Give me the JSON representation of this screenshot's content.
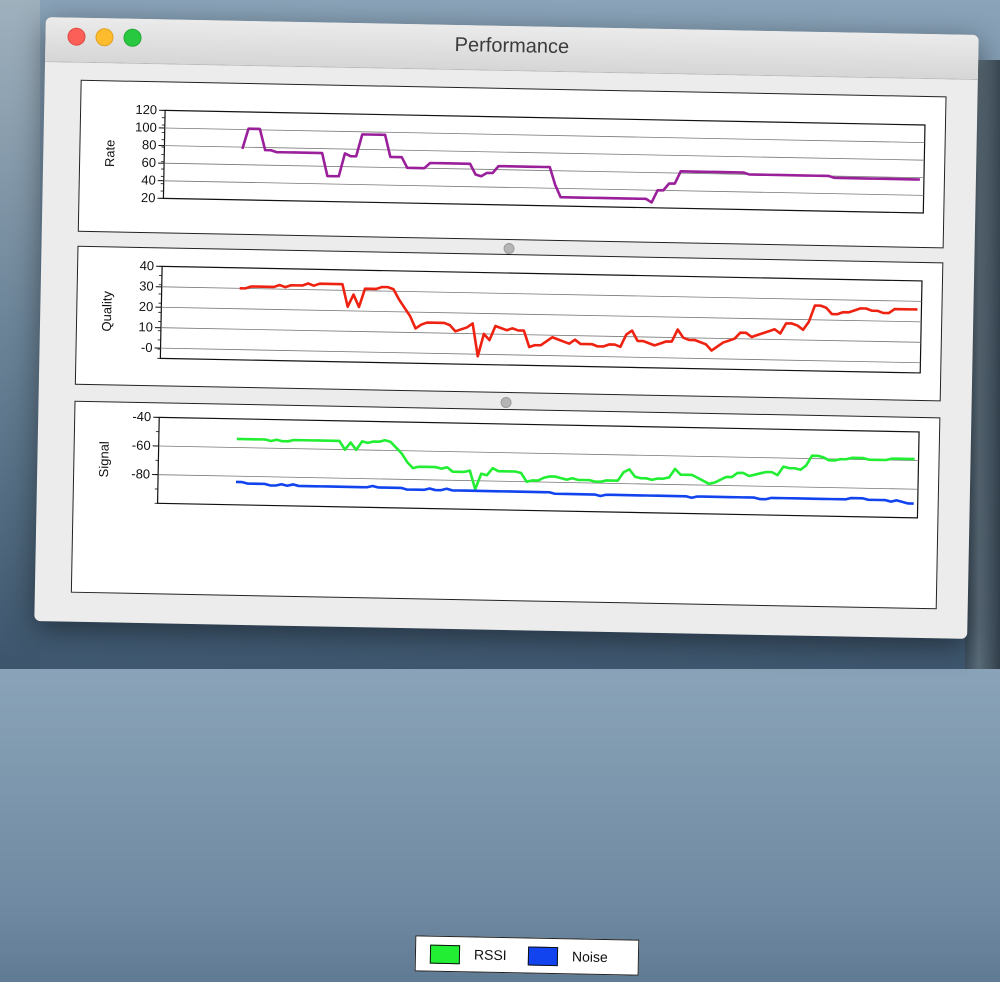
{
  "window": {
    "title": "Performance"
  },
  "legend": {
    "items": [
      {
        "label": "RSSI",
        "color": "#22ee33"
      },
      {
        "label": "Noise",
        "color": "#1144ee"
      }
    ]
  },
  "chart_data": [
    {
      "type": "line",
      "ylabel": "Rate",
      "ylim": [
        20,
        120
      ],
      "yticks": [
        "120",
        "100",
        "80",
        "60",
        "40",
        "20"
      ],
      "grid": true,
      "series": [
        {
          "color": "#9a1f9a",
          "x": [
            0,
            1,
            2,
            3,
            4,
            5,
            6,
            7,
            8,
            9,
            10,
            11,
            12,
            13,
            14,
            15,
            16,
            17,
            18,
            19,
            20,
            21,
            22,
            23,
            24,
            25,
            26,
            27,
            28,
            29,
            30,
            31,
            32,
            33,
            34,
            35,
            36,
            37,
            38,
            39,
            40,
            41,
            42,
            43,
            44,
            45,
            46,
            47,
            48,
            49,
            50,
            51,
            52,
            53,
            54,
            55,
            56,
            57,
            58,
            59,
            60,
            61,
            62,
            63,
            64,
            65,
            66,
            67,
            68,
            69,
            70,
            71,
            72,
            73,
            74,
            75,
            76,
            77,
            78,
            79,
            80,
            81,
            82,
            83,
            84,
            85,
            86,
            87,
            88,
            89,
            90,
            91,
            92,
            93,
            94,
            95,
            96,
            97,
            98,
            99,
            100,
            101,
            102,
            103,
            104,
            105,
            106,
            107,
            108,
            109,
            110,
            111,
            112,
            113,
            114,
            115,
            116,
            117,
            118,
            119
          ],
          "values": [
            78,
            101,
            101,
            101,
            77,
            77,
            75,
            75,
            75,
            75,
            75,
            75,
            75,
            75,
            75,
            49,
            49,
            49,
            75,
            72,
            72,
            97,
            97,
            97,
            97,
            97,
            72,
            72,
            72,
            60,
            60,
            60,
            60,
            66,
            66,
            66,
            66,
            66,
            66,
            66,
            66,
            54,
            52,
            56,
            56,
            64,
            64,
            64,
            64,
            64,
            64,
            64,
            64,
            64,
            64,
            44,
            30,
            30,
            30,
            30,
            30,
            30,
            30,
            30,
            30,
            30,
            30,
            30,
            30,
            30,
            30,
            30,
            26,
            40,
            40,
            48,
            48,
            62,
            62,
            62,
            62,
            62,
            62,
            62,
            62,
            62,
            62,
            62,
            62,
            60,
            60,
            60,
            60,
            60,
            60,
            60,
            60,
            60,
            60,
            60,
            60,
            60,
            60,
            60,
            58,
            58,
            58,
            58,
            58,
            58,
            58,
            58,
            58,
            58,
            58,
            58,
            58,
            58,
            58,
            58
          ]
        }
      ]
    },
    {
      "type": "line",
      "ylabel": "Quality",
      "ylim": [
        -5,
        40
      ],
      "yticks": [
        "40",
        "30",
        "20",
        "10",
        "-0"
      ],
      "grid": true,
      "series": [
        {
          "color": "#ee2211",
          "x": [
            0,
            1,
            2,
            3,
            4,
            5,
            6,
            7,
            8,
            9,
            10,
            11,
            12,
            13,
            14,
            15,
            16,
            17,
            18,
            19,
            20,
            21,
            22,
            23,
            24,
            25,
            26,
            27,
            28,
            29,
            30,
            31,
            32,
            33,
            34,
            35,
            36,
            37,
            38,
            39,
            40,
            41,
            42,
            43,
            44,
            45,
            46,
            47,
            48,
            49,
            50,
            51,
            52,
            53,
            54,
            55,
            56,
            57,
            58,
            59,
            60,
            61,
            62,
            63,
            64,
            65,
            66,
            67,
            68,
            69,
            70,
            71,
            72,
            73,
            74,
            75,
            76,
            77,
            78,
            79,
            80,
            81,
            82,
            83,
            84,
            85,
            86,
            87,
            88,
            89,
            90,
            91,
            92,
            93,
            94,
            95,
            96,
            97,
            98,
            99,
            100,
            101,
            102,
            103,
            104,
            105,
            106,
            107,
            108,
            109,
            110,
            111,
            112,
            113,
            114,
            115,
            116,
            117,
            118,
            119
          ],
          "values": [
            30,
            30,
            31,
            31,
            31,
            31,
            31,
            32,
            31,
            32,
            32,
            32,
            33,
            32,
            33,
            33,
            33,
            33,
            33,
            22,
            28,
            22,
            31,
            31,
            31,
            32,
            32,
            31,
            26,
            22,
            18,
            12,
            14,
            15,
            15,
            15,
            15,
            14,
            11,
            12,
            13,
            15,
            -1,
            10,
            7,
            14,
            13,
            12,
            13,
            12,
            12,
            4,
            5,
            5,
            7,
            9,
            8,
            7,
            6,
            8,
            6,
            6,
            6,
            5,
            5,
            6,
            6,
            5,
            11,
            13,
            8,
            8,
            7,
            6,
            7,
            8,
            8,
            14,
            10,
            9,
            9,
            8,
            7,
            4,
            6,
            8,
            9,
            10,
            13,
            13,
            11,
            12,
            13,
            14,
            15,
            13,
            18,
            18,
            17,
            15,
            19,
            27,
            27,
            26,
            23,
            23,
            24,
            24,
            25,
            26,
            26,
            25,
            25,
            24,
            24,
            26,
            26,
            26,
            26,
            26
          ]
        }
      ]
    },
    {
      "type": "line",
      "ylabel": "Signal",
      "ylim": [
        -100,
        -40
      ],
      "yticks": [
        "-40",
        "-60",
        "-80"
      ],
      "grid": true,
      "series": [
        {
          "name": "RSSI",
          "color": "#22ee33",
          "x": [
            0,
            1,
            2,
            3,
            4,
            5,
            6,
            7,
            8,
            9,
            10,
            11,
            12,
            13,
            14,
            15,
            16,
            17,
            18,
            19,
            20,
            21,
            22,
            23,
            24,
            25,
            26,
            27,
            28,
            29,
            30,
            31,
            32,
            33,
            34,
            35,
            36,
            37,
            38,
            39,
            40,
            41,
            42,
            43,
            44,
            45,
            46,
            47,
            48,
            49,
            50,
            51,
            52,
            53,
            54,
            55,
            56,
            57,
            58,
            59,
            60,
            61,
            62,
            63,
            64,
            65,
            66,
            67,
            68,
            69,
            70,
            71,
            72,
            73,
            74,
            75,
            76,
            77,
            78,
            79,
            80,
            81,
            82,
            83,
            84,
            85,
            86,
            87,
            88,
            89,
            90,
            91,
            92,
            93,
            94,
            95,
            96,
            97,
            98,
            99,
            100,
            101,
            102,
            103,
            104,
            105,
            106,
            107,
            108,
            109,
            110,
            111,
            112,
            113,
            114,
            115,
            116,
            117,
            118,
            119
          ],
          "values": [
            -54,
            -54,
            -54,
            -54,
            -54,
            -54,
            -55,
            -54,
            -55,
            -55,
            -54,
            -54,
            -54,
            -54,
            -54,
            -54,
            -54,
            -54,
            -54,
            -60,
            -55,
            -60,
            -54,
            -55,
            -54,
            -54,
            -53,
            -54,
            -58,
            -62,
            -68,
            -72,
            -71,
            -71,
            -71,
            -71,
            -72,
            -71,
            -74,
            -74,
            -74,
            -73,
            -86,
            -75,
            -76,
            -71,
            -73,
            -73,
            -73,
            -73,
            -74,
            -80,
            -79,
            -79,
            -77,
            -76,
            -76,
            -77,
            -78,
            -77,
            -78,
            -78,
            -78,
            -79,
            -79,
            -78,
            -78,
            -78,
            -72,
            -70,
            -75,
            -76,
            -76,
            -77,
            -76,
            -76,
            -75,
            -69,
            -73,
            -73,
            -73,
            -75,
            -77,
            -79,
            -78,
            -76,
            -74,
            -74,
            -71,
            -71,
            -73,
            -72,
            -71,
            -70,
            -70,
            -72,
            -66,
            -67,
            -67,
            -68,
            -65,
            -58,
            -58,
            -59,
            -61,
            -61,
            -60,
            -60,
            -59,
            -59,
            -59,
            -60,
            -60,
            -60,
            -60,
            -59,
            -59,
            -59,
            -59,
            -59
          ]
        },
        {
          "name": "Noise",
          "color": "#1144ee",
          "x": [
            0,
            1,
            2,
            3,
            4,
            5,
            6,
            7,
            8,
            9,
            10,
            11,
            12,
            13,
            14,
            15,
            16,
            17,
            18,
            19,
            20,
            21,
            22,
            23,
            24,
            25,
            26,
            27,
            28,
            29,
            30,
            31,
            32,
            33,
            34,
            35,
            36,
            37,
            38,
            39,
            40,
            41,
            42,
            43,
            44,
            45,
            46,
            47,
            48,
            49,
            50,
            51,
            52,
            53,
            54,
            55,
            56,
            57,
            58,
            59,
            60,
            61,
            62,
            63,
            64,
            65,
            66,
            67,
            68,
            69,
            70,
            71,
            72,
            73,
            74,
            75,
            76,
            77,
            78,
            79,
            80,
            81,
            82,
            83,
            84,
            85,
            86,
            87,
            88,
            89,
            90,
            91,
            92,
            93,
            94,
            95,
            96,
            97,
            98,
            99,
            100,
            101,
            102,
            103,
            104,
            105,
            106,
            107,
            108,
            109,
            110,
            111,
            112,
            113,
            114,
            115,
            116,
            117,
            118,
            119
          ],
          "values": [
            -84,
            -84,
            -85,
            -85,
            -85,
            -85,
            -86,
            -86,
            -85,
            -86,
            -85,
            -86,
            -86,
            -86,
            -86,
            -86,
            -86,
            -86,
            -86,
            -86,
            -86,
            -86,
            -86,
            -86,
            -85,
            -86,
            -86,
            -86,
            -86,
            -86,
            -87,
            -87,
            -87,
            -87,
            -86,
            -87,
            -87,
            -86,
            -87,
            -87,
            -87,
            -87,
            -87,
            -87,
            -87,
            -87,
            -87,
            -87,
            -87,
            -87,
            -87,
            -87,
            -87,
            -87,
            -87,
            -87,
            -88,
            -88,
            -88,
            -88,
            -88,
            -88,
            -88,
            -88,
            -89,
            -88,
            -88,
            -88,
            -88,
            -88,
            -88,
            -88,
            -88,
            -88,
            -88,
            -88,
            -88,
            -88,
            -88,
            -88,
            -89,
            -88,
            -88,
            -88,
            -88,
            -88,
            -88,
            -88,
            -88,
            -88,
            -88,
            -88,
            -89,
            -89,
            -88,
            -88,
            -88,
            -88,
            -88,
            -88,
            -88,
            -88,
            -88,
            -88,
            -88,
            -88,
            -88,
            -88,
            -87,
            -87,
            -87,
            -88,
            -88,
            -88,
            -88,
            -89,
            -88,
            -89,
            -90,
            -90
          ]
        }
      ]
    }
  ]
}
